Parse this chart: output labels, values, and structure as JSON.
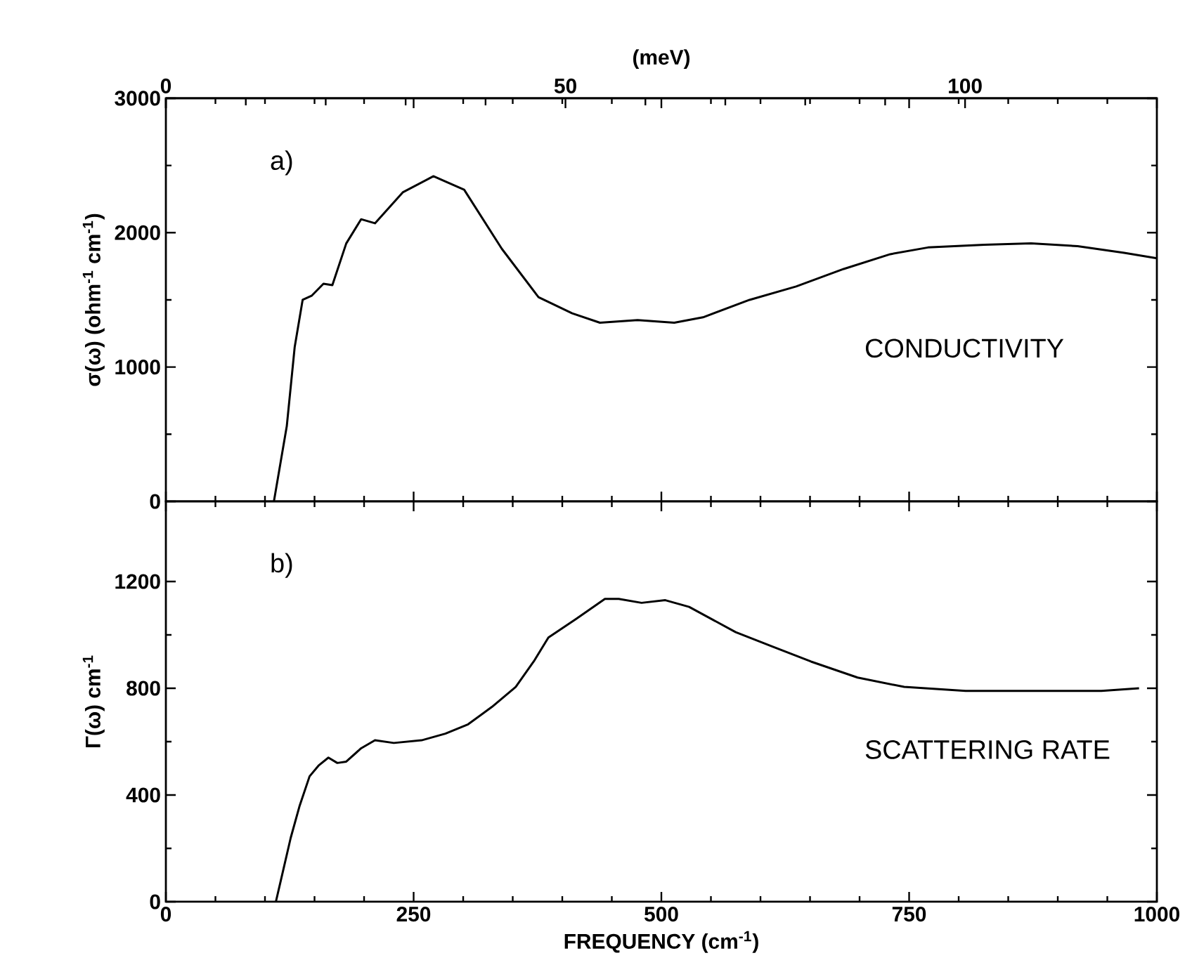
{
  "chart_data": [
    {
      "type": "line",
      "ylabel": "σ(ω)   (ohm$^{-1}$ cm$^{-1}$)",
      "x2label": "(meV)",
      "annotations": [
        "a)",
        "CONDUCTIVITY"
      ],
      "xlim": [
        0,
        1000
      ],
      "ylim": [
        0,
        3000
      ],
      "yticks": [
        0,
        1000,
        2000,
        3000
      ],
      "x2lim": [
        0,
        124.0
      ],
      "x2ticks": [
        0,
        50,
        100
      ],
      "tick_labels": "y",
      "series": [
        {
          "color": "#000000",
          "x": [
            109,
            122,
            130,
            138,
            147,
            159,
            168,
            182,
            197,
            211,
            239,
            270,
            301,
            339,
            376,
            410,
            438,
            476,
            513,
            542,
            589,
            636,
            684,
            731,
            769,
            826,
            873,
            920,
            967,
            1000
          ],
          "values": [
            0,
            560,
            1150,
            1500,
            1530,
            1620,
            1610,
            1920,
            2100,
            2070,
            2300,
            2420,
            2320,
            1880,
            1520,
            1400,
            1330,
            1350,
            1330,
            1370,
            1500,
            1600,
            1730,
            1840,
            1890,
            1910,
            1920,
            1900,
            1850,
            1810
          ]
        }
      ]
    },
    {
      "type": "line",
      "ylabel": "Γ(ω) cm$^{-1}$",
      "xlabel": "FREQUENCY (cm$^{-1}$)",
      "annotations": [
        "b)",
        "SCATTERING RATE"
      ],
      "xlim": [
        0,
        1000
      ],
      "xticks": [
        0,
        250,
        500,
        750,
        1000
      ],
      "ylim": [
        0,
        1500
      ],
      "yticks": [
        0,
        400,
        800,
        1200
      ],
      "series": [
        {
          "color": "#000000",
          "x": [
            111,
            116,
            126,
            135,
            145,
            154,
            164,
            173,
            182,
            197,
            211,
            230,
            258,
            282,
            305,
            329,
            353,
            372,
            386,
            414,
            443,
            457,
            480,
            504,
            528,
            575,
            613,
            651,
            698,
            745,
            807,
            873,
            944,
            982
          ],
          "values": [
            0,
            80,
            240,
            360,
            470,
            510,
            540,
            520,
            525,
            575,
            605,
            595,
            605,
            630,
            665,
            730,
            805,
            905,
            990,
            1060,
            1135,
            1135,
            1120,
            1130,
            1105,
            1010,
            955,
            900,
            840,
            805,
            790,
            790,
            790,
            800
          ]
        }
      ]
    }
  ]
}
